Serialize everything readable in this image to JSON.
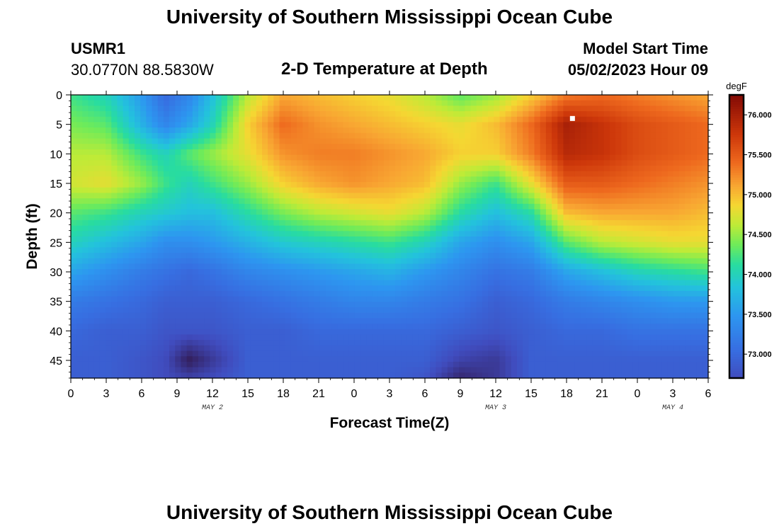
{
  "header": {
    "title": "University of Southern Mississippi Ocean Cube",
    "station_id": "USMR1",
    "coordinates": "30.0770N  88.5830W",
    "plot_title": "2-D Temperature at Depth",
    "start_label": "Model Start Time",
    "start_value": "05/02/2023 Hour 09"
  },
  "footer": {
    "title": "University of Southern Mississippi Ocean Cube"
  },
  "chart_data": {
    "type": "heatmap",
    "title": "2-D Temperature at Depth",
    "xlabel": "Forecast Time(Z)",
    "ylabel": "Depth (ft)",
    "x_range_hours": [
      0,
      54
    ],
    "x_ticks": [
      0,
      3,
      6,
      9,
      12,
      15,
      18,
      21,
      24,
      27,
      30,
      33,
      36,
      39,
      42,
      45,
      48,
      51,
      54
    ],
    "x_tick_labels": [
      "0",
      "3",
      "6",
      "9",
      "12",
      "15",
      "18",
      "21",
      "0",
      "3",
      "6",
      "9",
      "12",
      "15",
      "18",
      "21",
      "0",
      "3",
      "6"
    ],
    "date_labels": [
      {
        "label": "MAY 2",
        "hour": 12
      },
      {
        "label": "MAY 3",
        "hour": 36
      },
      {
        "label": "MAY 4",
        "hour": 51
      }
    ],
    "y_range_ft": [
      0,
      48
    ],
    "y_ticks": [
      0,
      5,
      10,
      15,
      20,
      25,
      30,
      35,
      40,
      45
    ],
    "y_tick_labels": [
      "0",
      "5",
      "10",
      "15",
      "20",
      "25",
      "30",
      "35",
      "40",
      "45"
    ],
    "colorbar": {
      "unit": "degF",
      "min": 72.7,
      "max": 76.25,
      "ticks": [
        73.0,
        73.5,
        74.0,
        74.5,
        75.0,
        75.5,
        76.0
      ],
      "tick_labels": [
        "73.000",
        "73.500",
        "74.000",
        "74.500",
        "75.000",
        "75.500",
        "76.000"
      ]
    },
    "marker": {
      "hour": 42.5,
      "depth_ft": 4
    },
    "temperature_field": {
      "depths_ft": [
        0,
        5,
        10,
        15,
        20,
        25,
        30,
        35,
        40,
        45,
        48
      ],
      "profiles": [
        {
          "hour": 0,
          "values": [
            74.2,
            74.4,
            74.6,
            74.7,
            74.3,
            74.0,
            73.6,
            73.2,
            73.0,
            72.9,
            72.9
          ]
        },
        {
          "hour": 3,
          "values": [
            74.0,
            74.3,
            74.6,
            74.8,
            74.2,
            73.8,
            73.4,
            73.1,
            72.9,
            72.9,
            72.9
          ]
        },
        {
          "hour": 6,
          "values": [
            73.5,
            73.7,
            74.2,
            74.5,
            74.0,
            73.6,
            73.2,
            73.0,
            72.9,
            72.8,
            72.8
          ]
        },
        {
          "hour": 8,
          "values": [
            73.0,
            73.3,
            74.0,
            74.2,
            73.9,
            73.4,
            73.1,
            72.9,
            72.8,
            72.7,
            72.7
          ]
        },
        {
          "hour": 10,
          "values": [
            73.3,
            73.6,
            74.3,
            74.0,
            73.8,
            73.4,
            73.0,
            72.9,
            72.8,
            72.2,
            72.6
          ]
        },
        {
          "hour": 12,
          "values": [
            73.8,
            74.0,
            74.5,
            74.2,
            73.8,
            73.5,
            73.1,
            72.9,
            72.8,
            72.5,
            72.7
          ]
        },
        {
          "hour": 15,
          "values": [
            74.6,
            74.9,
            74.8,
            74.5,
            74.1,
            73.7,
            73.3,
            73.0,
            72.9,
            72.9,
            72.9
          ]
        },
        {
          "hour": 18,
          "values": [
            75.1,
            75.4,
            75.2,
            74.9,
            74.4,
            73.9,
            73.4,
            73.1,
            72.9,
            72.9,
            72.9
          ]
        },
        {
          "hour": 21,
          "values": [
            75.0,
            75.2,
            75.3,
            75.1,
            74.6,
            74.0,
            73.5,
            73.2,
            73.0,
            72.9,
            72.9
          ]
        },
        {
          "hour": 24,
          "values": [
            74.9,
            75.1,
            75.3,
            75.2,
            74.7,
            74.1,
            73.6,
            73.3,
            73.0,
            72.9,
            72.9
          ]
        },
        {
          "hour": 27,
          "values": [
            74.8,
            75.0,
            75.2,
            75.1,
            74.8,
            74.2,
            73.7,
            73.3,
            73.0,
            72.9,
            72.9
          ]
        },
        {
          "hour": 30,
          "values": [
            74.6,
            74.9,
            75.1,
            75.0,
            74.6,
            74.0,
            73.5,
            73.2,
            73.0,
            72.9,
            72.8
          ]
        },
        {
          "hour": 33,
          "values": [
            74.3,
            74.8,
            74.9,
            74.5,
            74.1,
            73.6,
            73.3,
            73.1,
            72.9,
            72.6,
            72.3
          ]
        },
        {
          "hour": 36,
          "values": [
            74.5,
            75.0,
            74.9,
            74.2,
            73.8,
            73.4,
            73.1,
            72.9,
            72.8,
            72.5,
            72.5
          ]
        },
        {
          "hour": 39,
          "values": [
            74.9,
            75.4,
            75.3,
            74.8,
            74.1,
            73.6,
            73.2,
            73.0,
            72.9,
            72.9,
            72.9
          ]
        },
        {
          "hour": 42,
          "values": [
            75.3,
            76.0,
            75.9,
            75.5,
            75.0,
            74.3,
            73.6,
            73.2,
            73.0,
            72.9,
            72.9
          ]
        },
        {
          "hour": 45,
          "values": [
            75.4,
            75.8,
            75.8,
            75.5,
            75.1,
            74.6,
            73.8,
            73.3,
            73.0,
            72.9,
            72.9
          ]
        },
        {
          "hour": 48,
          "values": [
            75.3,
            75.6,
            75.6,
            75.4,
            75.1,
            74.7,
            74.0,
            73.4,
            73.1,
            72.9,
            72.9
          ]
        },
        {
          "hour": 51,
          "values": [
            75.2,
            75.5,
            75.5,
            75.3,
            75.1,
            74.8,
            74.1,
            73.5,
            73.1,
            72.9,
            72.9
          ]
        },
        {
          "hour": 54,
          "values": [
            75.1,
            75.4,
            75.4,
            75.2,
            75.0,
            74.8,
            74.2,
            73.5,
            73.1,
            72.9,
            72.9
          ]
        }
      ]
    }
  }
}
